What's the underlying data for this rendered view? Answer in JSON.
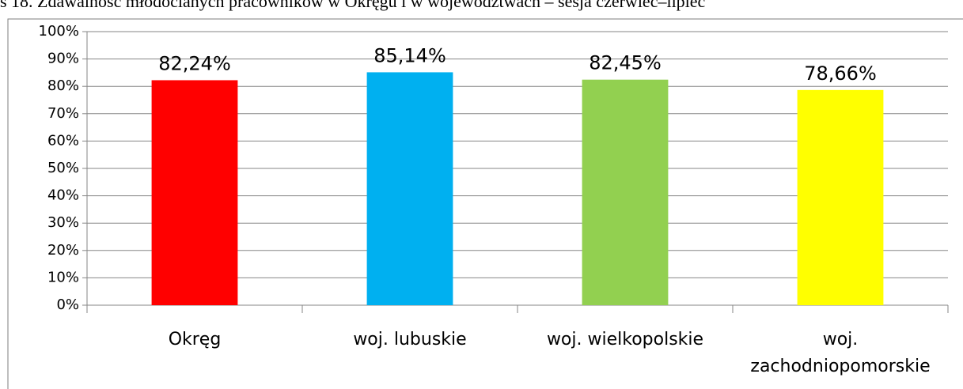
{
  "chart_data": {
    "type": "bar",
    "title": "s 18. Zdawalność młodocianych pracowników w Okręgu i w województwach – sesja czerwiec–lipiec",
    "categories": [
      "Okręg",
      "woj. lubuskie",
      "woj. wielkopolskie",
      "woj. zachodniopomorskie"
    ],
    "values": [
      82.24,
      85.14,
      82.45,
      78.66
    ],
    "value_labels": [
      "82,24%",
      "85,14%",
      "82,45%",
      "78,66%"
    ],
    "colors": [
      "#ff0000",
      "#00b0f0",
      "#92d050",
      "#ffff00"
    ],
    "ylim": [
      0,
      100
    ],
    "yticks": [
      {
        "value": 0,
        "label": "0%"
      },
      {
        "value": 10,
        "label": "10%"
      },
      {
        "value": 20,
        "label": "20%"
      },
      {
        "value": 30,
        "label": "30%"
      },
      {
        "value": 40,
        "label": "40%"
      },
      {
        "value": 50,
        "label": "50%"
      },
      {
        "value": 60,
        "label": "60%"
      },
      {
        "value": 70,
        "label": "70%"
      },
      {
        "value": 80,
        "label": "80%"
      },
      {
        "value": 90,
        "label": "90%"
      },
      {
        "value": 100,
        "label": "100%"
      }
    ],
    "grid": true
  }
}
